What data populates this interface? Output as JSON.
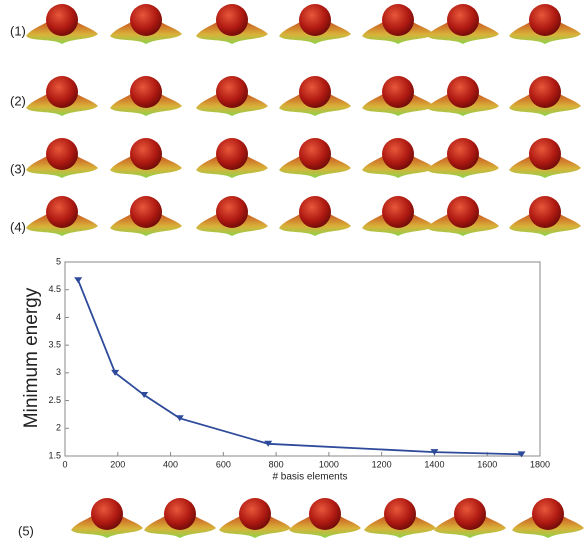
{
  "row_labels": [
    "(1)",
    "(2)",
    "(3)",
    "(4)",
    "(5)"
  ],
  "chart_data": {
    "type": "line",
    "x_label": "# basis elements",
    "y_label": "Minimum energy",
    "series": [
      {
        "name": "Minimum energy",
        "color": "#2e4a9a",
        "x": [
          50,
          190,
          300,
          435,
          770,
          1400,
          1730
        ],
        "values": [
          4.67,
          3.0,
          2.6,
          2.18,
          1.72,
          1.57,
          1.53
        ]
      }
    ],
    "xlim": [
      0,
      1800
    ],
    "xticks": [
      0,
      200,
      400,
      600,
      800,
      1000,
      1200,
      1400,
      1600,
      1800
    ],
    "ylim": [
      1.5,
      5
    ],
    "yticks": [
      1.5,
      2,
      2.5,
      3,
      3.5,
      4,
      4.5,
      5
    ]
  }
}
